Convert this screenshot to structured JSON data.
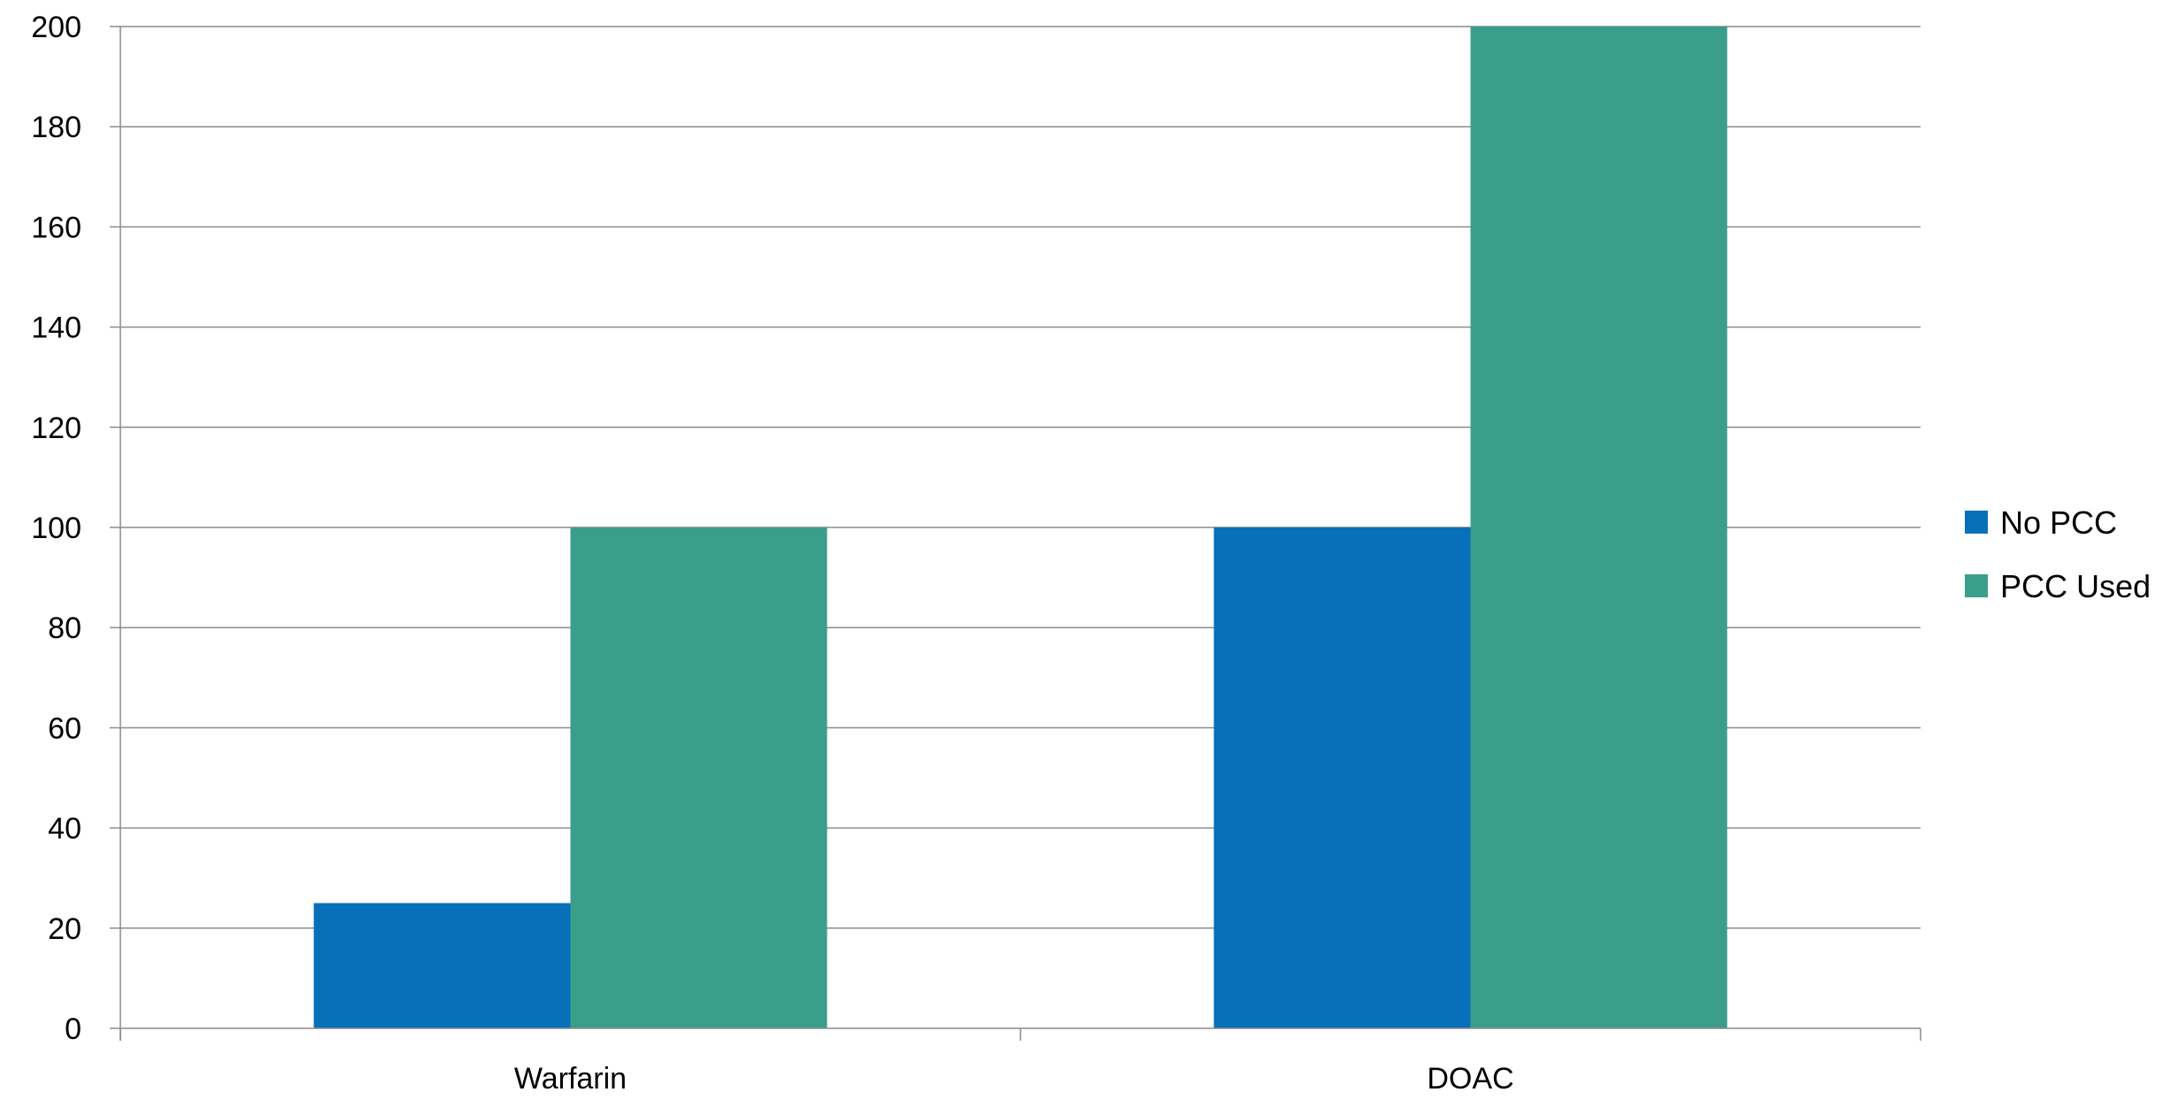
{
  "chart_data": {
    "type": "bar",
    "title": "",
    "xlabel": "",
    "ylabel": "",
    "categories": [
      "Warfarin",
      "DOAC"
    ],
    "series": [
      {
        "name": "No PCC",
        "values": [
          25,
          100
        ],
        "color": "#0770B8"
      },
      {
        "name": "PCC Used",
        "values": [
          100,
          200
        ],
        "color": "#3A9E8B"
      }
    ],
    "ylim": [
      0,
      200
    ],
    "yticks": [
      0,
      20,
      40,
      60,
      80,
      100,
      120,
      140,
      160,
      180,
      200
    ],
    "grid": true,
    "legend_position": "right"
  }
}
